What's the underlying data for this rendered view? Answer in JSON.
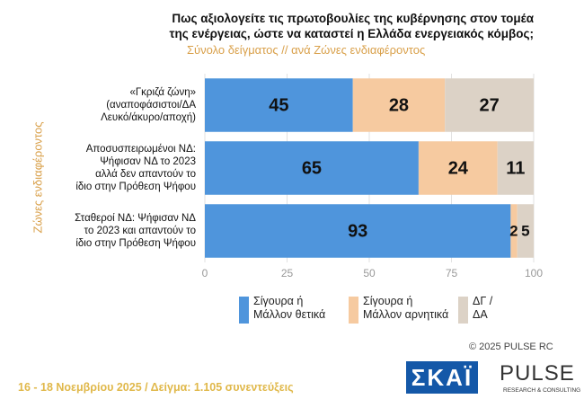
{
  "chart_data": {
    "type": "stacked-bar-horizontal",
    "title": "Πως αξιολογείτε τις πρωτοβουλίες της κυβέρνησης στον τομέα της ενέργειας, ώστε να καταστεί η Ελλάδα ενεργειακός κόμβος;",
    "subtitle": "Σύνολο δείγματος // ανά Ζώνες ενδιαφέροντος",
    "y_label": "Ζώνες ενδιαφέροντος",
    "categories": [
      "«Γκριζά ζώνη»\n(αναποφάσιστοι/ΔΑ\nΛευκό/άκυρο/αποχή)",
      "Αποσυσπειρωμένοι ΝΔ:\nΨήφισαν ΝΔ το 2023\nαλλά δεν απαντούν το\nίδιο στην Πρόθεση Ψήφου",
      "Σταθεροί ΝΔ: Ψήφισαν ΝΔ\nτο 2023 και απαντούν το\nίδιο στην Πρόθεση Ψήφου"
    ],
    "series": [
      {
        "name": "Σίγουρα ή\nΜάλλον θετικά",
        "color": "#4f95dc",
        "values": [
          45,
          65,
          93
        ]
      },
      {
        "name": "Σίγουρα ή\nΜάλλον αρνητικά",
        "color": "#f6caa0",
        "values": [
          28,
          24,
          2
        ]
      },
      {
        "name": "ΔΓ /\nΔΑ",
        "color": "#dcd2c6",
        "values": [
          27,
          11,
          5
        ]
      }
    ],
    "xlim": [
      0,
      100
    ],
    "xticks": [
      0,
      25,
      50,
      75,
      100
    ],
    "grid": true,
    "watermark": "PULSE",
    "footer": "16 - 18 Νοεμβρίου 2025  /  Δείγμα:  1.105 συνεντεύξεις",
    "copyright": "© 2025  PULSE RC",
    "logos": [
      "ΣΚΑΪ",
      "PULSE",
      "RESEARCH & CONSULTING"
    ]
  }
}
